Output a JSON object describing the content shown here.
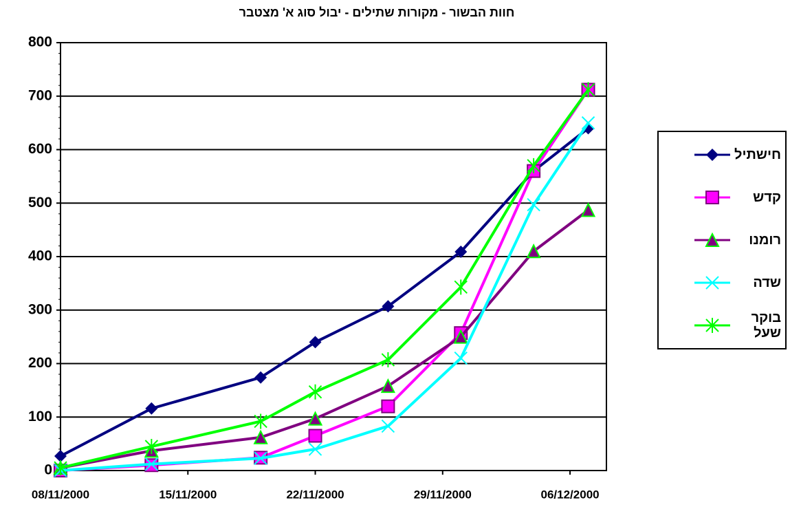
{
  "chart_data": {
    "type": "line",
    "title": "חוות הבשור - מקורות שתילים - יבול סוג א'  מצטבר",
    "x": [
      "08/11/2000",
      "13/11/2000",
      "19/11/2000",
      "22/11/2000",
      "26/11/2000",
      "30/11/2000",
      "04/12/2000",
      "07/12/2000"
    ],
    "xlim": [
      "08/11/2000",
      "08/12/2000"
    ],
    "xticks": [
      "08/11/2000",
      "15/11/2000",
      "22/11/2000",
      "29/11/2000",
      "06/12/2000"
    ],
    "ylim": [
      0,
      800
    ],
    "yticks": [
      0,
      100,
      200,
      300,
      400,
      500,
      600,
      700,
      800
    ],
    "grid": true,
    "legend": "right",
    "series": [
      {
        "name": "חישתיל",
        "color": "#000080",
        "marker": "diamond",
        "values": [
          27,
          116,
          174,
          240,
          307,
          409,
          560,
          640
        ]
      },
      {
        "name": "קדש",
        "color": "#ff00ff",
        "marker": "square",
        "values": [
          0,
          10,
          24,
          65,
          120,
          257,
          560,
          712
        ]
      },
      {
        "name": "רומנו",
        "color": "#800080",
        "marker": "triangle",
        "values": [
          5,
          37,
          62,
          97,
          158,
          250,
          410,
          487
        ]
      },
      {
        "name": "שדה",
        "color": "#00ffff",
        "marker": "xsquare",
        "values": [
          0,
          12,
          23,
          40,
          83,
          210,
          497,
          650
        ]
      },
      {
        "name": "בוקר שעל",
        "color": "#00ff00",
        "marker": "star",
        "values": [
          5,
          45,
          92,
          147,
          207,
          343,
          570,
          712
        ]
      }
    ]
  }
}
